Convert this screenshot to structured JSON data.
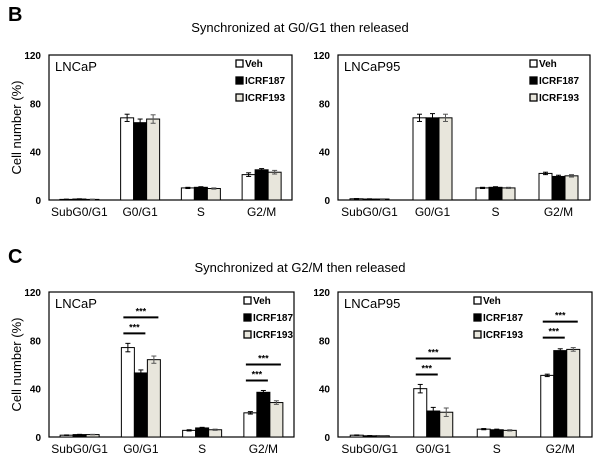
{
  "chart_data": [
    {
      "panel": "B",
      "title": "Synchronized at G0/G1 then released",
      "cell_line": "LNCaP",
      "type": "bar",
      "ylabel": "Cell number (%)",
      "ylim": [
        0,
        120
      ],
      "yticks": [
        0,
        40,
        80,
        120
      ],
      "categories": [
        "SubG0/G1",
        "G0/G1",
        "S",
        "G2/M"
      ],
      "series": [
        {
          "name": "Veh",
          "values": [
            0.5,
            68,
            10,
            21
          ],
          "errors": [
            0.2,
            3,
            0.5,
            1.5
          ]
        },
        {
          "name": "ICRF187",
          "values": [
            0.8,
            64,
            10.5,
            25
          ],
          "errors": [
            0.2,
            3,
            0.5,
            1
          ]
        },
        {
          "name": "ICRF193",
          "values": [
            0.5,
            67,
            9.5,
            23
          ],
          "errors": [
            0.2,
            3.5,
            0.5,
            1.5
          ]
        }
      ],
      "significance": []
    },
    {
      "panel": "",
      "title": "",
      "cell_line": "LNCaP95",
      "type": "bar",
      "ylabel": "",
      "ylim": [
        0,
        120
      ],
      "yticks": [
        0,
        40,
        80,
        120
      ],
      "categories": [
        "SubG0/G1",
        "G0/G1",
        "S",
        "G2/M"
      ],
      "series": [
        {
          "name": "Veh",
          "values": [
            1,
            68,
            10,
            22
          ],
          "errors": [
            0.2,
            3,
            0.5,
            1
          ]
        },
        {
          "name": "ICRF187",
          "values": [
            0.8,
            68,
            10.5,
            19.5
          ],
          "errors": [
            0.2,
            3.5,
            0.5,
            1
          ]
        },
        {
          "name": "ICRF193",
          "values": [
            0.8,
            68,
            10,
            20
          ],
          "errors": [
            0.2,
            3,
            0.5,
            1
          ]
        }
      ],
      "significance": []
    },
    {
      "panel": "C",
      "title": "Synchronized at G2/M then released",
      "cell_line": "LNCaP",
      "type": "bar",
      "ylabel": "Cell number (%)",
      "ylim": [
        0,
        120
      ],
      "yticks": [
        0,
        40,
        80,
        120
      ],
      "categories": [
        "SubG0/G1",
        "G0/G1",
        "S",
        "G2/M"
      ],
      "series": [
        {
          "name": "Veh",
          "values": [
            1.5,
            74,
            5.5,
            20
          ],
          "errors": [
            0.2,
            3.5,
            0.5,
            1
          ]
        },
        {
          "name": "ICRF187",
          "values": [
            2,
            53,
            7.5,
            37
          ],
          "errors": [
            0.2,
            2.5,
            0.5,
            1.5
          ]
        },
        {
          "name": "ICRF193",
          "values": [
            2,
            64,
            6,
            28.5
          ],
          "errors": [
            0.2,
            3,
            0.5,
            1.5
          ]
        }
      ],
      "significance": [
        {
          "category": 1,
          "from": 0,
          "to": 1,
          "label": "***"
        },
        {
          "category": 1,
          "from": 0,
          "to": 2,
          "label": "***"
        },
        {
          "category": 3,
          "from": 0,
          "to": 1,
          "label": "***"
        },
        {
          "category": 3,
          "from": 0,
          "to": 2,
          "label": "***"
        }
      ]
    },
    {
      "panel": "",
      "title": "",
      "cell_line": "LNCaP95",
      "type": "bar",
      "ylabel": "",
      "ylim": [
        0,
        120
      ],
      "yticks": [
        0,
        40,
        80,
        120
      ],
      "categories": [
        "SubG0/G1",
        "G0/G1",
        "S",
        "G2/M"
      ],
      "series": [
        {
          "name": "Veh",
          "values": [
            1.5,
            40,
            6.5,
            51
          ],
          "errors": [
            0.2,
            3.5,
            0.5,
            1
          ]
        },
        {
          "name": "ICRF187",
          "values": [
            1,
            21.5,
            6,
            71.5
          ],
          "errors": [
            0.2,
            3,
            0.5,
            1.5
          ]
        },
        {
          "name": "ICRF193",
          "values": [
            1,
            20.5,
            5.5,
            72.5
          ],
          "errors": [
            0.2,
            3.5,
            0.5,
            1.5
          ]
        }
      ],
      "significance": [
        {
          "category": 1,
          "from": 0,
          "to": 1,
          "label": "***"
        },
        {
          "category": 1,
          "from": 0,
          "to": 2,
          "label": "***"
        },
        {
          "category": 3,
          "from": 0,
          "to": 1,
          "label": "***"
        },
        {
          "category": 3,
          "from": 0,
          "to": 2,
          "label": "***"
        }
      ]
    }
  ],
  "colors": {
    "Veh": "#ffffff",
    "ICRF187": "#000000",
    "ICRF193": "#e8e6dc"
  }
}
